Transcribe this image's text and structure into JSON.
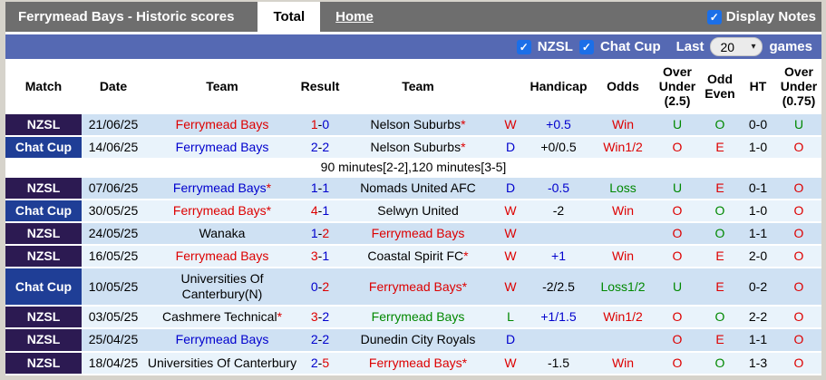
{
  "colors": {
    "text": {
      "red": "#dd0000",
      "blue": "#0000cd",
      "green": "#008800",
      "black": "#000000"
    },
    "league_badges": {
      "NZSL": "#2c1a52",
      "Chat Cup": "#1f3e96"
    },
    "topbar_bg": "#6e6e6e",
    "filterbar_bg": "#5569b3",
    "row_dark": "#cfe1f3",
    "row_light": "#e9f3fb",
    "checkbox_blue": "#1b6fe8"
  },
  "topbar": {
    "title": "Ferrymead Bays - Historic scores",
    "tabs": [
      {
        "label": "Total",
        "active": true
      },
      {
        "label": "Home",
        "active": false
      }
    ],
    "display_notes_label": "Display Notes",
    "display_notes_checked": true
  },
  "filterbar": {
    "nzsl_label": "NZSL",
    "nzsl_checked": true,
    "chatcup_label": "Chat Cup",
    "chatcup_checked": true,
    "last_label": "Last",
    "games_count": "20",
    "games_label": "games"
  },
  "table": {
    "columns": [
      "Match",
      "Date",
      "Team",
      "Result",
      "Team",
      "",
      "Handicap",
      "Odds",
      "Over Under (2.5)",
      "Odd Even",
      "HT",
      "Over Under (0.75)"
    ],
    "rows": [
      {
        "type": "match",
        "league": "NZSL",
        "date": "21/06/25",
        "home": {
          "name": "Ferrymead Bays",
          "color": "red",
          "asterisk": false
        },
        "score": {
          "home": "1",
          "home_color": "red",
          "away": "0",
          "away_color": "blue"
        },
        "away": {
          "name": "Nelson Suburbs",
          "color": "black",
          "asterisk": true
        },
        "wdl": {
          "text": "W",
          "color": "red"
        },
        "handicap": {
          "text": "+0.5",
          "color": "blue"
        },
        "odds": {
          "text": "Win",
          "color": "red"
        },
        "over_under_25": {
          "text": "U",
          "color": "green"
        },
        "odd_even": {
          "text": "O",
          "color": "green"
        },
        "ht": "0-0",
        "over_under_075": {
          "text": "U",
          "color": "green"
        }
      },
      {
        "type": "match",
        "league": "Chat Cup",
        "date": "14/06/25",
        "home": {
          "name": "Ferrymead Bays",
          "color": "blue",
          "asterisk": false
        },
        "score": {
          "home": "2",
          "home_color": "blue",
          "away": "2",
          "away_color": "blue"
        },
        "away": {
          "name": "Nelson Suburbs",
          "color": "black",
          "asterisk": true
        },
        "wdl": {
          "text": "D",
          "color": "blue"
        },
        "handicap": {
          "text": "+0/0.5",
          "color": "black"
        },
        "odds": {
          "text": "Win1/2",
          "color": "red"
        },
        "over_under_25": {
          "text": "O",
          "color": "red"
        },
        "odd_even": {
          "text": "E",
          "color": "red"
        },
        "ht": "1-0",
        "over_under_075": {
          "text": "O",
          "color": "red"
        }
      },
      {
        "type": "note",
        "text": "90 minutes[2-2],120 minutes[3-5]"
      },
      {
        "type": "match",
        "league": "NZSL",
        "date": "07/06/25",
        "home": {
          "name": "Ferrymead Bays",
          "color": "blue",
          "asterisk": true
        },
        "score": {
          "home": "1",
          "home_color": "blue",
          "away": "1",
          "away_color": "blue"
        },
        "away": {
          "name": "Nomads United AFC",
          "color": "black",
          "asterisk": false
        },
        "wdl": {
          "text": "D",
          "color": "blue"
        },
        "handicap": {
          "text": "-0.5",
          "color": "blue"
        },
        "odds": {
          "text": "Loss",
          "color": "green"
        },
        "over_under_25": {
          "text": "U",
          "color": "green"
        },
        "odd_even": {
          "text": "E",
          "color": "red"
        },
        "ht": "0-1",
        "over_under_075": {
          "text": "O",
          "color": "red"
        }
      },
      {
        "type": "match",
        "league": "Chat Cup",
        "date": "30/05/25",
        "home": {
          "name": "Ferrymead Bays",
          "color": "red",
          "asterisk": true
        },
        "score": {
          "home": "4",
          "home_color": "red",
          "away": "1",
          "away_color": "blue"
        },
        "away": {
          "name": "Selwyn United",
          "color": "black",
          "asterisk": false
        },
        "wdl": {
          "text": "W",
          "color": "red"
        },
        "handicap": {
          "text": "-2",
          "color": "black"
        },
        "odds": {
          "text": "Win",
          "color": "red"
        },
        "over_under_25": {
          "text": "O",
          "color": "red"
        },
        "odd_even": {
          "text": "O",
          "color": "green"
        },
        "ht": "1-0",
        "over_under_075": {
          "text": "O",
          "color": "red"
        }
      },
      {
        "type": "match",
        "league": "NZSL",
        "date": "24/05/25",
        "home": {
          "name": "Wanaka",
          "color": "black",
          "asterisk": false
        },
        "score": {
          "home": "1",
          "home_color": "blue",
          "away": "2",
          "away_color": "red"
        },
        "away": {
          "name": "Ferrymead Bays",
          "color": "red",
          "asterisk": false
        },
        "wdl": {
          "text": "W",
          "color": "red"
        },
        "handicap": {
          "text": "",
          "color": "black"
        },
        "odds": {
          "text": "",
          "color": "black"
        },
        "over_under_25": {
          "text": "O",
          "color": "red"
        },
        "odd_even": {
          "text": "O",
          "color": "green"
        },
        "ht": "1-1",
        "over_under_075": {
          "text": "O",
          "color": "red"
        }
      },
      {
        "type": "match",
        "league": "NZSL",
        "date": "16/05/25",
        "home": {
          "name": "Ferrymead Bays",
          "color": "red",
          "asterisk": false
        },
        "score": {
          "home": "3",
          "home_color": "red",
          "away": "1",
          "away_color": "blue"
        },
        "away": {
          "name": "Coastal Spirit FC",
          "color": "black",
          "asterisk": true
        },
        "wdl": {
          "text": "W",
          "color": "red"
        },
        "handicap": {
          "text": "+1",
          "color": "blue"
        },
        "odds": {
          "text": "Win",
          "color": "red"
        },
        "over_under_25": {
          "text": "O",
          "color": "red"
        },
        "odd_even": {
          "text": "E",
          "color": "red"
        },
        "ht": "2-0",
        "over_under_075": {
          "text": "O",
          "color": "red"
        }
      },
      {
        "type": "match",
        "league": "Chat Cup",
        "date": "10/05/25",
        "home": {
          "name": "Universities Of Canterbury(N)",
          "color": "black",
          "asterisk": false
        },
        "score": {
          "home": "0",
          "home_color": "blue",
          "away": "2",
          "away_color": "red"
        },
        "away": {
          "name": "Ferrymead Bays",
          "color": "red",
          "asterisk": true
        },
        "wdl": {
          "text": "W",
          "color": "red"
        },
        "handicap": {
          "text": "-2/2.5",
          "color": "black"
        },
        "odds": {
          "text": "Loss1/2",
          "color": "green"
        },
        "over_under_25": {
          "text": "U",
          "color": "green"
        },
        "odd_even": {
          "text": "E",
          "color": "red"
        },
        "ht": "0-2",
        "over_under_075": {
          "text": "O",
          "color": "red"
        }
      },
      {
        "type": "match",
        "league": "NZSL",
        "date": "03/05/25",
        "home": {
          "name": "Cashmere Technical",
          "color": "black",
          "asterisk": true
        },
        "score": {
          "home": "3",
          "home_color": "red",
          "away": "2",
          "away_color": "blue"
        },
        "away": {
          "name": "Ferrymead Bays",
          "color": "green",
          "asterisk": false
        },
        "wdl": {
          "text": "L",
          "color": "green"
        },
        "handicap": {
          "text": "+1/1.5",
          "color": "blue"
        },
        "odds": {
          "text": "Win1/2",
          "color": "red"
        },
        "over_under_25": {
          "text": "O",
          "color": "red"
        },
        "odd_even": {
          "text": "O",
          "color": "green"
        },
        "ht": "2-2",
        "over_under_075": {
          "text": "O",
          "color": "red"
        }
      },
      {
        "type": "match",
        "league": "NZSL",
        "date": "25/04/25",
        "home": {
          "name": "Ferrymead Bays",
          "color": "blue",
          "asterisk": false
        },
        "score": {
          "home": "2",
          "home_color": "blue",
          "away": "2",
          "away_color": "blue"
        },
        "away": {
          "name": "Dunedin City Royals",
          "color": "black",
          "asterisk": false
        },
        "wdl": {
          "text": "D",
          "color": "blue"
        },
        "handicap": {
          "text": "",
          "color": "black"
        },
        "odds": {
          "text": "",
          "color": "black"
        },
        "over_under_25": {
          "text": "O",
          "color": "red"
        },
        "odd_even": {
          "text": "E",
          "color": "red"
        },
        "ht": "1-1",
        "over_under_075": {
          "text": "O",
          "color": "red"
        }
      },
      {
        "type": "match",
        "league": "NZSL",
        "date": "18/04/25",
        "home": {
          "name": "Universities Of Canterbury",
          "color": "black",
          "asterisk": false
        },
        "score": {
          "home": "2",
          "home_color": "blue",
          "away": "5",
          "away_color": "red"
        },
        "away": {
          "name": "Ferrymead Bays",
          "color": "red",
          "asterisk": true
        },
        "wdl": {
          "text": "W",
          "color": "red"
        },
        "handicap": {
          "text": "-1.5",
          "color": "black"
        },
        "odds": {
          "text": "Win",
          "color": "red"
        },
        "over_under_25": {
          "text": "O",
          "color": "red"
        },
        "odd_even": {
          "text": "O",
          "color": "green"
        },
        "ht": "1-3",
        "over_under_075": {
          "text": "O",
          "color": "red"
        }
      }
    ]
  }
}
